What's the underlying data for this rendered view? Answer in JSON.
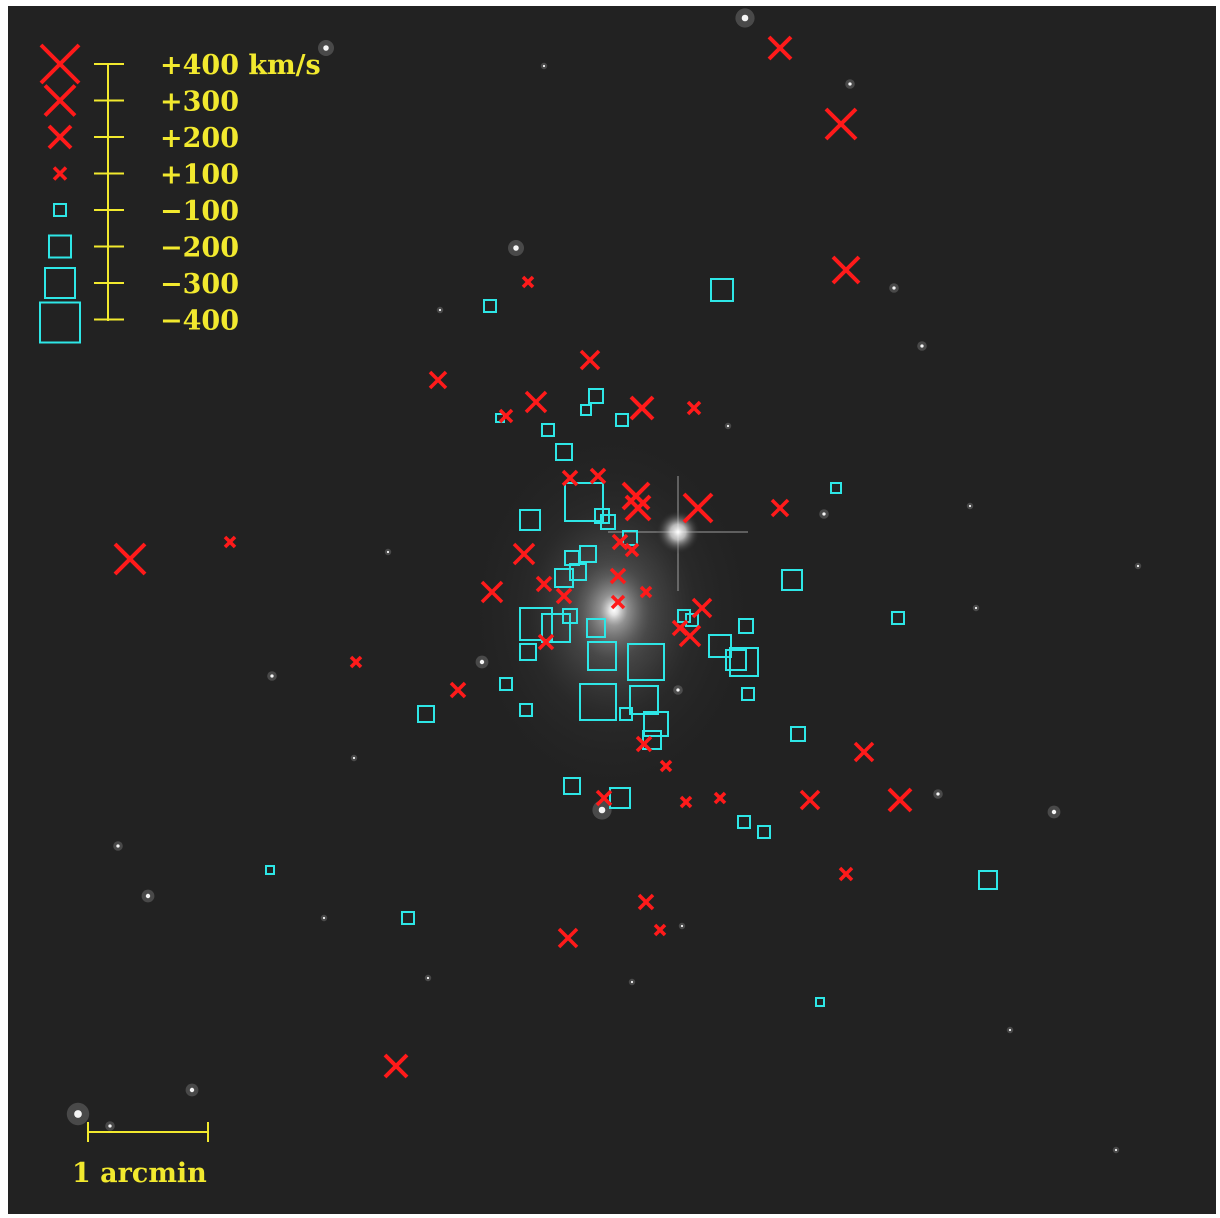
{
  "image": {
    "type": "astronomical-image",
    "description_colors": {
      "sky": "#222222",
      "positive_velocity": "#ff1a1a",
      "negative_velocity": "#2ee6e6",
      "annotation": "#f2e92e"
    }
  },
  "legend": {
    "entries": [
      {
        "label": "+400 km/s",
        "marker": "cross",
        "velocity": 400
      },
      {
        "label": "+300",
        "marker": "cross",
        "velocity": 300
      },
      {
        "label": "+200",
        "marker": "cross",
        "velocity": 200
      },
      {
        "label": "+100",
        "marker": "cross",
        "velocity": 100
      },
      {
        "label": "−100",
        "marker": "square",
        "velocity": -100
      },
      {
        "label": "−200",
        "marker": "square",
        "velocity": -200
      },
      {
        "label": "−300",
        "marker": "square",
        "velocity": -300
      },
      {
        "label": "−400",
        "marker": "square",
        "velocity": -400
      }
    ]
  },
  "scale_bar": {
    "label": "1 arcmin"
  }
}
